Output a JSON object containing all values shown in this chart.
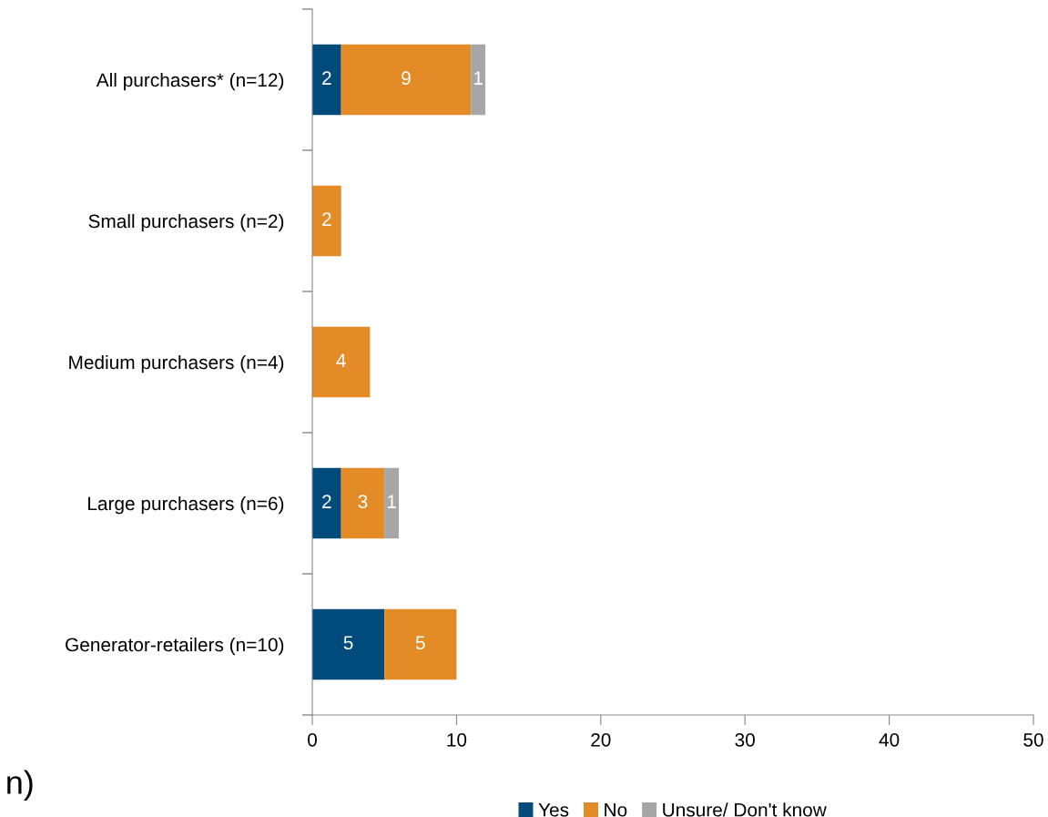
{
  "chart_data": {
    "type": "bar",
    "orientation": "horizontal",
    "stacked": true,
    "categories": [
      "All purchasers* (n=12)",
      "Small purchasers (n=2)",
      "Medium purchasers (n=4)",
      "Large purchasers (n=6)",
      "Generator-retailers (n=10)"
    ],
    "series": [
      {
        "name": "Yes",
        "color": "#004b7c",
        "values": [
          2,
          null,
          null,
          2,
          5
        ]
      },
      {
        "name": "No",
        "color": "#e38b27",
        "values": [
          9,
          2,
          4,
          3,
          5
        ]
      },
      {
        "name": "Unsure/ Don't know",
        "color": "#a6a6a6",
        "values": [
          1,
          null,
          null,
          1,
          null
        ]
      }
    ],
    "xlim": [
      0,
      50
    ],
    "xticks": [
      0,
      10,
      20,
      30,
      40,
      50
    ],
    "grid": false,
    "legend": "bottom",
    "data_labels": true,
    "annotations": [
      "n)"
    ]
  }
}
